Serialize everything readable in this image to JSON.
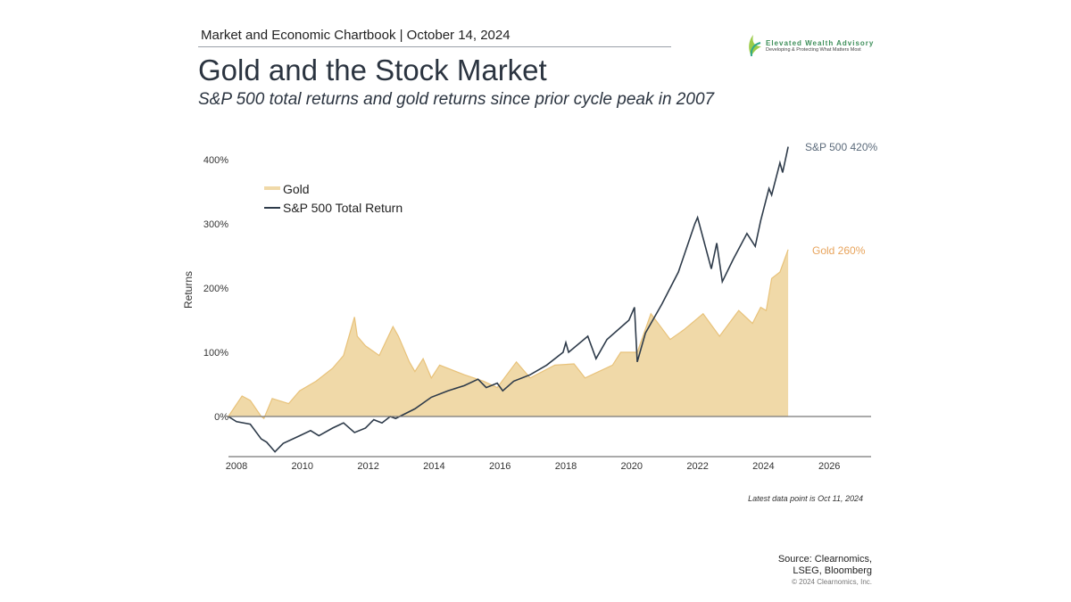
{
  "header": {
    "chartbook": "Market and Economic Chartbook | October 14, 2024",
    "title": "Gold and the Stock Market",
    "subtitle": "S&P 500 total returns and gold returns since prior cycle peak in 2007"
  },
  "logo": {
    "name": "Elevated Wealth Advisory",
    "tagline": "Developing & Protecting What Matters Most"
  },
  "footer": {
    "note": "Latest data point is Oct 11, 2024",
    "source_line1": "Source: Clearnomics,",
    "source_line2": "LSEG, Bloomberg",
    "copyright": "© 2024 Clearnomics, Inc."
  },
  "chart_data": {
    "type": "line",
    "title": "",
    "ylabel": "Returns",
    "xlabel": "",
    "xlim": [
      2008,
      2027
    ],
    "ylim": [
      -62,
      420
    ],
    "x_ticks": [
      "2008",
      "2010",
      "2012",
      "2014",
      "2016",
      "2018",
      "2020",
      "2022",
      "2024",
      "2026"
    ],
    "y_ticks": [
      "0%",
      "100%",
      "200%",
      "300%",
      "400%"
    ],
    "y_tick_values": [
      0,
      100,
      200,
      300,
      400
    ],
    "legend_placement": "top-left",
    "grid": false,
    "colors": {
      "gold": "#f0d9a8",
      "gold_line": "#e8c27a",
      "gold_label": "#e8a45c",
      "sp500": "#2e3b4a",
      "sp500_label": "#5c6b7b"
    },
    "end_labels": {
      "sp500": "S&P 500 420%",
      "gold": "Gold 260%"
    },
    "series": [
      {
        "name": "Gold",
        "style": "area",
        "points": [
          [
            "2007-10",
            0
          ],
          [
            "2008-03",
            32
          ],
          [
            "2008-06",
            25
          ],
          [
            "2008-10",
            0
          ],
          [
            "2008-11",
            -3
          ],
          [
            "2009-02",
            28
          ],
          [
            "2009-08",
            20
          ],
          [
            "2009-12",
            40
          ],
          [
            "2010-06",
            55
          ],
          [
            "2010-12",
            75
          ],
          [
            "2011-04",
            95
          ],
          [
            "2011-08",
            155
          ],
          [
            "2011-09",
            125
          ],
          [
            "2011-12",
            110
          ],
          [
            "2012-05",
            95
          ],
          [
            "2012-10",
            140
          ],
          [
            "2012-12",
            125
          ],
          [
            "2013-04",
            85
          ],
          [
            "2013-06",
            70
          ],
          [
            "2013-09",
            90
          ],
          [
            "2013-12",
            60
          ],
          [
            "2014-03",
            80
          ],
          [
            "2014-12",
            65
          ],
          [
            "2015-07",
            55
          ],
          [
            "2015-12",
            45
          ],
          [
            "2016-07",
            85
          ],
          [
            "2016-12",
            60
          ],
          [
            "2017-09",
            80
          ],
          [
            "2018-04",
            82
          ],
          [
            "2018-08",
            60
          ],
          [
            "2019-06",
            80
          ],
          [
            "2019-09",
            100
          ],
          [
            "2020-03",
            100
          ],
          [
            "2020-08",
            160
          ],
          [
            "2021-03",
            120
          ],
          [
            "2021-08",
            135
          ],
          [
            "2022-03",
            160
          ],
          [
            "2022-09",
            125
          ],
          [
            "2023-04",
            165
          ],
          [
            "2023-09",
            145
          ],
          [
            "2023-12",
            170
          ],
          [
            "2024-02",
            165
          ],
          [
            "2024-04",
            215
          ],
          [
            "2024-07",
            225
          ],
          [
            "2024-10",
            260
          ]
        ]
      },
      {
        "name": "S&P 500 Total Return",
        "style": "line",
        "points": [
          [
            "2007-10",
            0
          ],
          [
            "2008-01",
            -8
          ],
          [
            "2008-06",
            -12
          ],
          [
            "2008-10",
            -35
          ],
          [
            "2008-12",
            -40
          ],
          [
            "2009-03",
            -55
          ],
          [
            "2009-06",
            -42
          ],
          [
            "2009-12",
            -30
          ],
          [
            "2010-04",
            -22
          ],
          [
            "2010-07",
            -30
          ],
          [
            "2010-12",
            -18
          ],
          [
            "2011-04",
            -10
          ],
          [
            "2011-08",
            -25
          ],
          [
            "2011-12",
            -18
          ],
          [
            "2012-03",
            -5
          ],
          [
            "2012-06",
            -10
          ],
          [
            "2012-09",
            0
          ],
          [
            "2012-11",
            -3
          ],
          [
            "2013-06",
            12
          ],
          [
            "2013-12",
            30
          ],
          [
            "2014-06",
            40
          ],
          [
            "2014-12",
            48
          ],
          [
            "2015-05",
            58
          ],
          [
            "2015-08",
            45
          ],
          [
            "2015-12",
            52
          ],
          [
            "2016-02",
            40
          ],
          [
            "2016-06",
            55
          ],
          [
            "2016-12",
            65
          ],
          [
            "2017-06",
            80
          ],
          [
            "2017-12",
            100
          ],
          [
            "2018-01",
            115
          ],
          [
            "2018-02",
            100
          ],
          [
            "2018-09",
            125
          ],
          [
            "2018-12",
            90
          ],
          [
            "2019-04",
            120
          ],
          [
            "2019-12",
            150
          ],
          [
            "2020-02",
            170
          ],
          [
            "2020-03",
            85
          ],
          [
            "2020-06",
            130
          ],
          [
            "2020-12",
            175
          ],
          [
            "2021-06",
            225
          ],
          [
            "2021-12",
            300
          ],
          [
            "2022-01",
            310
          ],
          [
            "2022-06",
            230
          ],
          [
            "2022-08",
            270
          ],
          [
            "2022-10",
            210
          ],
          [
            "2023-02",
            245
          ],
          [
            "2023-07",
            285
          ],
          [
            "2023-10",
            265
          ],
          [
            "2023-12",
            305
          ],
          [
            "2024-03",
            355
          ],
          [
            "2024-04",
            345
          ],
          [
            "2024-07",
            395
          ],
          [
            "2024-08",
            380
          ],
          [
            "2024-10",
            420
          ]
        ]
      }
    ]
  }
}
